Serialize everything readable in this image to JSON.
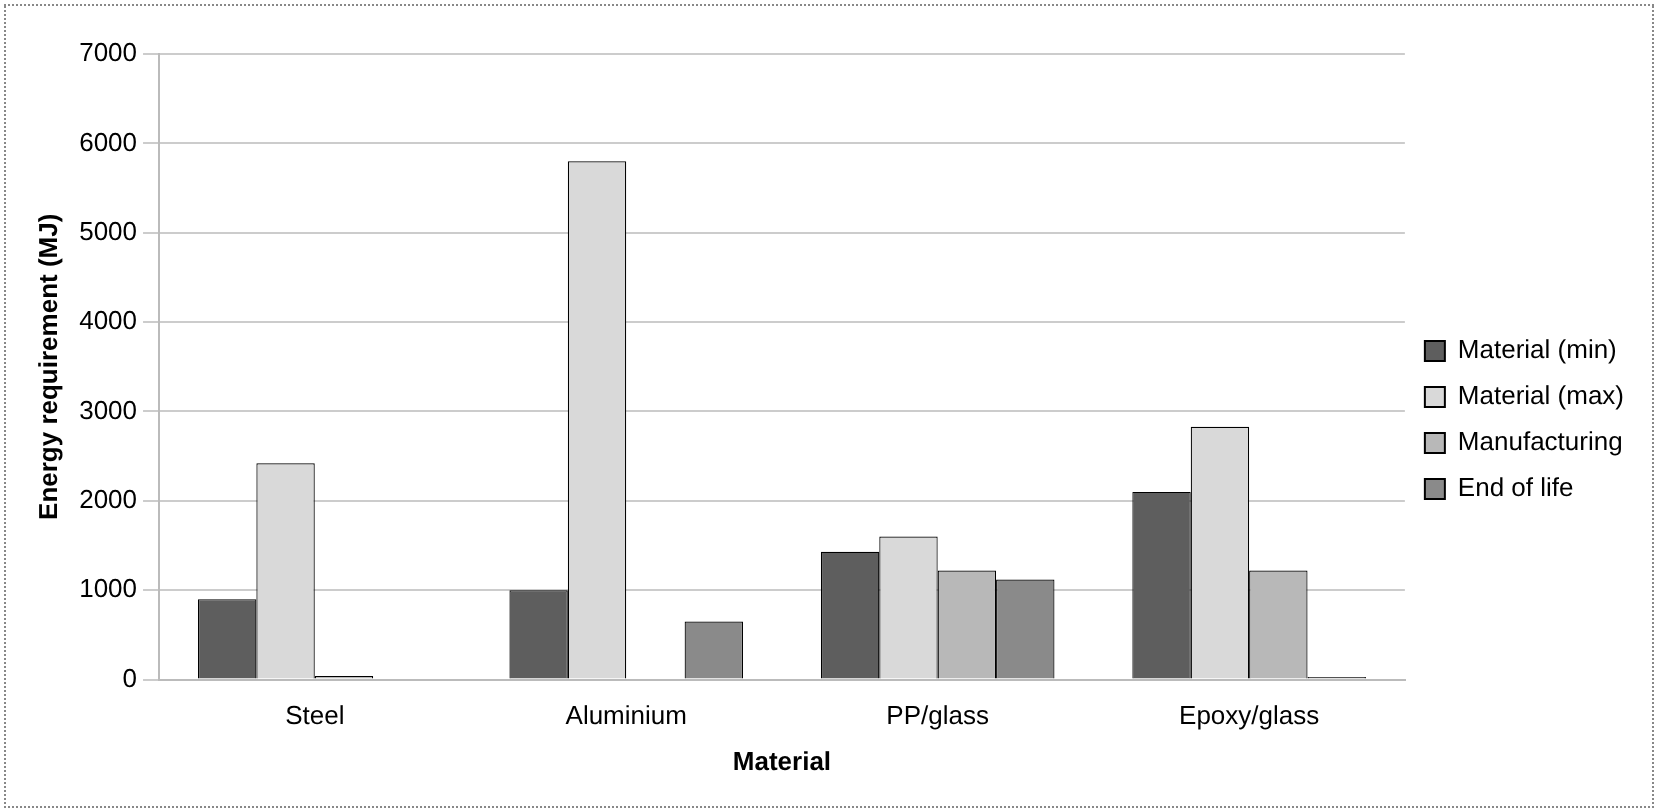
{
  "chart_data": {
    "type": "bar",
    "xlabel": "Material",
    "ylabel": "Energy requirement (MJ)",
    "categories": [
      "Steel",
      "Aluminium",
      "PP/glass",
      "Epoxy/glass"
    ],
    "series": [
      {
        "name": "Material (min)",
        "color": "#5e5e5e",
        "values": [
          900,
          1000,
          1430,
          2100
        ]
      },
      {
        "name": "Material (max)",
        "color": "#d9d9d9",
        "values": [
          2420,
          5800,
          1600,
          2830
        ]
      },
      {
        "name": "Manufacturing",
        "color": "#b8b8b8",
        "values": [
          40,
          null,
          1220,
          1220
        ]
      },
      {
        "name": "End of life",
        "color": "#8a8a8a",
        "values": [
          null,
          650,
          1120,
          30
        ]
      }
    ],
    "ylim": [
      0,
      7000
    ],
    "yticks": [
      0,
      1000,
      2000,
      3000,
      4000,
      5000,
      6000,
      7000
    ],
    "grid": "y",
    "legend": "right"
  }
}
